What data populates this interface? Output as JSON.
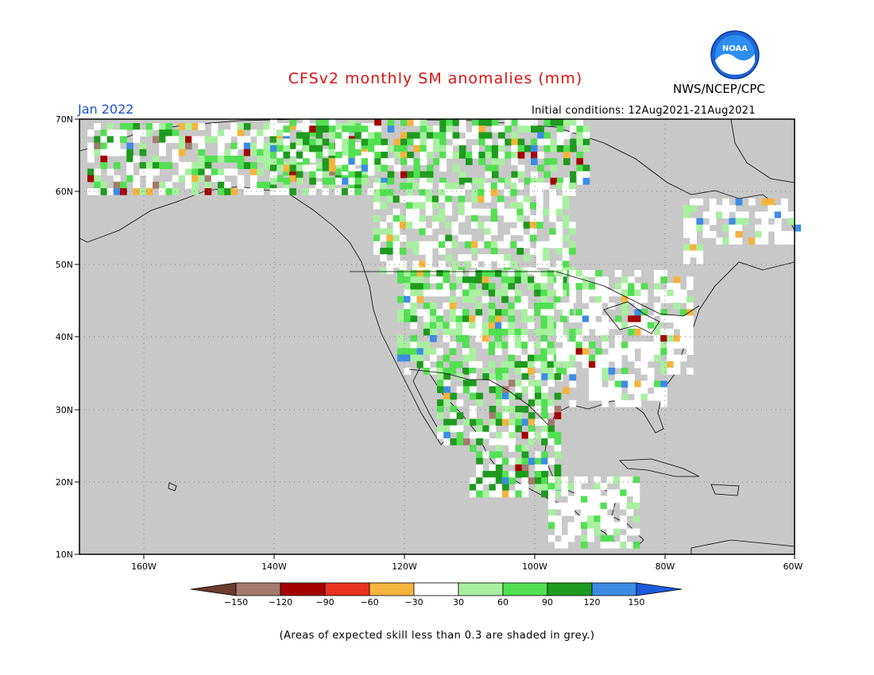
{
  "title": "CFSv2 monthly SM anomalies (mm)",
  "agency": "NWS/NCEP/CPC",
  "logo_text": "NOAA",
  "valid_label": "Jan 2022",
  "initial_conditions": "Initial conditions: 12Aug2021-21Aug2021",
  "lat_labels": [
    "70N",
    "60N",
    "50N",
    "40N",
    "30N",
    "20N",
    "10N"
  ],
  "lon_labels": [
    "160W",
    "140W",
    "120W",
    "100W",
    "80W",
    "60W"
  ],
  "colorbar": {
    "labels": [
      "-150",
      "-120",
      "-90",
      "-60",
      "-30",
      "30",
      "60",
      "90",
      "120",
      "150"
    ],
    "colors": [
      "#6b3d2c",
      "#a47a6e",
      "#a50000",
      "#e8321e",
      "#f5b43c",
      "#ffffff",
      "#a8f0a0",
      "#52e052",
      "#1e9b1e",
      "#3c8ce6",
      "#1e5adc"
    ]
  },
  "note": "(Areas of expected skill less than 0.3 are shaded in grey.)",
  "colors": {
    "grey": "#c8c8c8",
    "title": "#e01010",
    "valid": "#1a50d0"
  }
}
